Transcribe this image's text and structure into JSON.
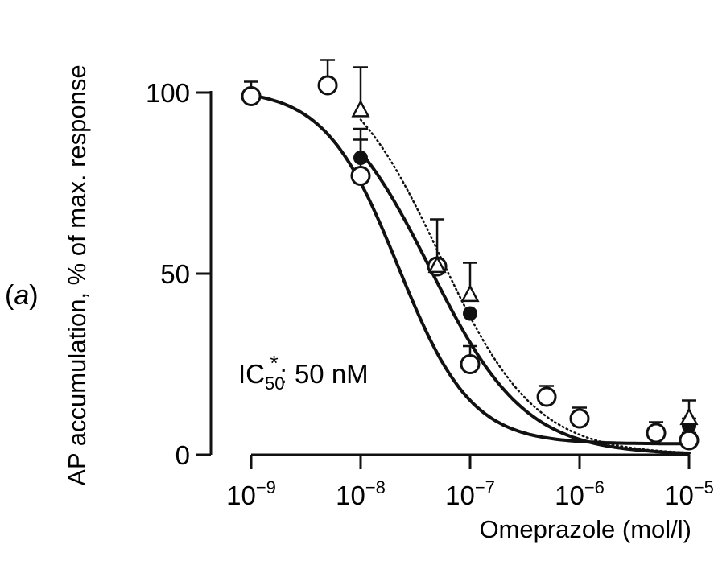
{
  "panel": {
    "label": "a"
  },
  "chart_data": {
    "type": "scatter",
    "title": "",
    "xlabel": "Omeprazole (mol/l)",
    "ylabel": "AP accumulation, % of max. response",
    "xscale": "log",
    "xlim": [
      1e-09,
      1e-05
    ],
    "ylim": [
      0,
      100
    ],
    "x_ticks": [
      {
        "value": 1e-09,
        "base": "10",
        "exp": "−9"
      },
      {
        "value": 1e-08,
        "base": "10",
        "exp": "−8"
      },
      {
        "value": 1e-07,
        "base": "10",
        "exp": "−7"
      },
      {
        "value": 1e-06,
        "base": "10",
        "exp": "−6"
      },
      {
        "value": 1e-05,
        "base": "10",
        "exp": "−5"
      }
    ],
    "y_ticks": [
      0,
      50,
      100
    ],
    "grid": false,
    "annotation": {
      "prefix": "IC",
      "sub": "50",
      "sup": "*",
      "suffix": ": 50 nM"
    },
    "series": [
      {
        "marker": "open-circle",
        "x": [
          1e-09,
          5e-09,
          1e-08,
          5e-08,
          1e-07,
          5e-07,
          1e-06,
          5e-06,
          1e-05
        ],
        "y": [
          99,
          102,
          77,
          52,
          25,
          16,
          10,
          6,
          4
        ],
        "err": [
          4,
          7,
          10,
          0,
          5,
          3,
          3,
          3,
          2
        ]
      },
      {
        "marker": "filled-circle",
        "x": [
          1e-08,
          1e-07,
          1e-05
        ],
        "y": [
          82,
          39,
          8
        ],
        "err": [
          8,
          0,
          2
        ]
      },
      {
        "marker": "open-triangle",
        "x": [
          1e-08,
          5e-08,
          1e-07,
          1e-05
        ],
        "y": [
          95,
          52,
          44,
          10
        ],
        "err": [
          12,
          13,
          9,
          5
        ]
      }
    ],
    "curves": [
      {
        "style": "solid",
        "x_start": 1e-09,
        "x_end": 1e-05,
        "top": 101,
        "ic50": 2.2e-08,
        "hill": 1.3,
        "bottom": 3
      },
      {
        "style": "solid",
        "x_start": 1e-08,
        "x_end": 1e-05,
        "top": 103,
        "ic50": 4.3e-08,
        "hill": 1.0,
        "bottom": 0
      },
      {
        "style": "dashed",
        "x_start": 1e-08,
        "x_end": 1e-05,
        "top": 110,
        "ic50": 5.3e-08,
        "hill": 1.0,
        "bottom": 0
      }
    ]
  }
}
